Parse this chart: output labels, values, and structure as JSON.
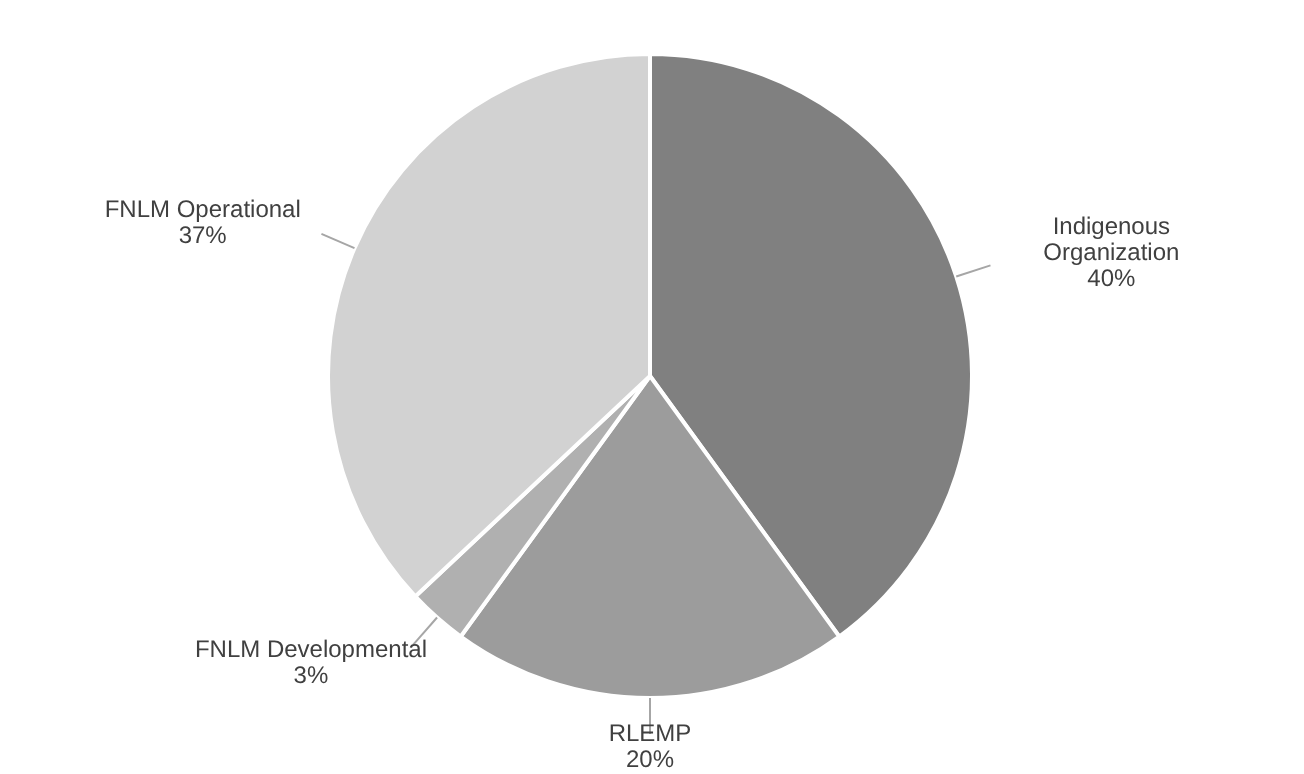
{
  "chart_data": {
    "type": "pie",
    "categories": [
      "Indigenous Organization",
      "RLEMP",
      "FNLM Developmental",
      "FNLM Operational"
    ],
    "values": [
      40,
      20,
      3,
      37
    ],
    "colors": [
      "#808080",
      "#9c9c9c",
      "#b0b0b0",
      "#d2d2d2"
    ],
    "value_labels": [
      "40%",
      "20%",
      "3%",
      "37%"
    ]
  }
}
